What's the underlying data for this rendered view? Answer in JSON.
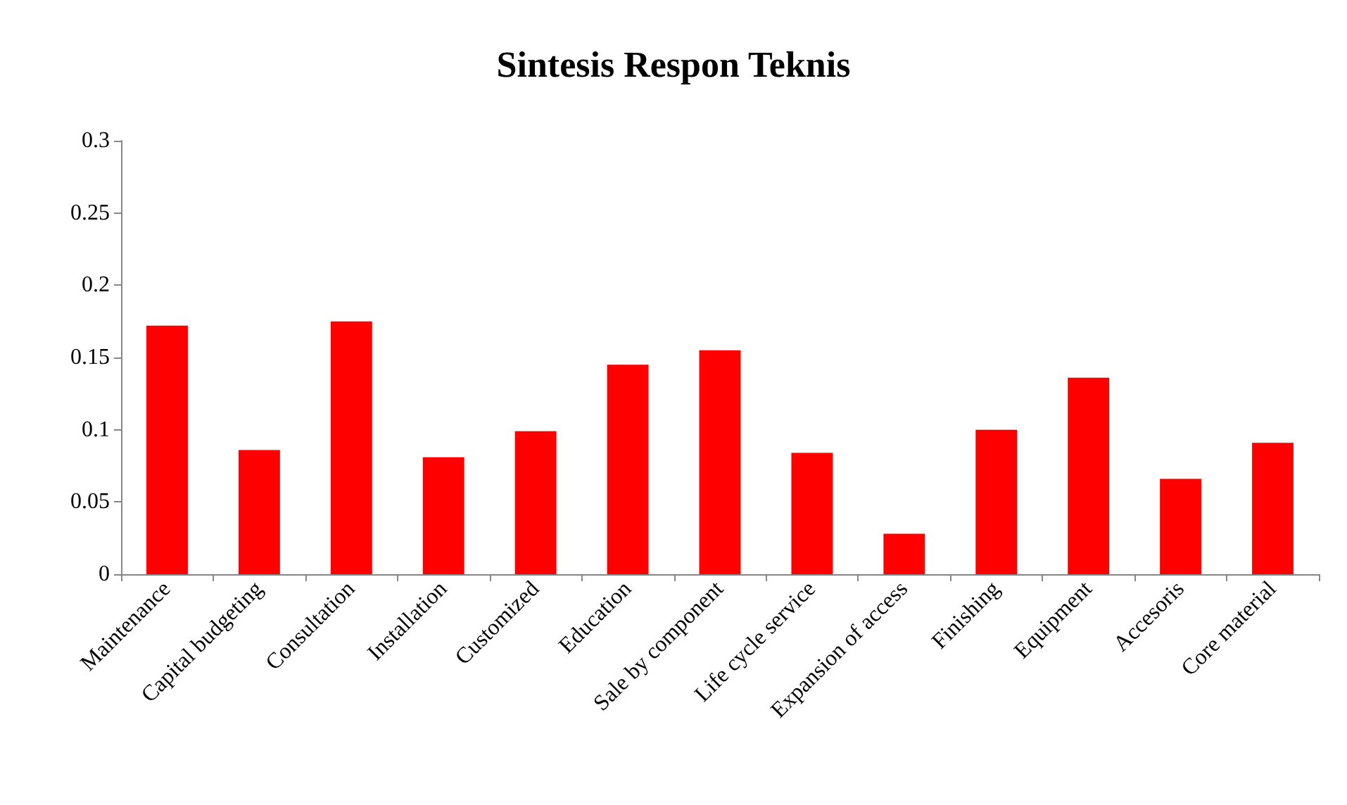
{
  "chart_data": {
    "type": "bar",
    "title": "Sintesis Respon Teknis",
    "categories": [
      "Maintenance",
      "Capital budgeting",
      "Consultation",
      "Installation",
      "Customized",
      "Education",
      "Sale by component",
      "Life cycle service",
      "Expansion of access",
      "Finishing",
      "Equipment",
      "Accesoris",
      "Core material"
    ],
    "values": [
      0.172,
      0.086,
      0.175,
      0.081,
      0.099,
      0.145,
      0.155,
      0.084,
      0.028,
      0.1,
      0.136,
      0.066,
      0.091
    ],
    "color": "#ff0000",
    "ylim": [
      0,
      0.3
    ],
    "yticks": [
      0,
      0.05,
      0.1,
      0.15,
      0.2,
      0.25,
      0.3
    ],
    "grid": false
  }
}
